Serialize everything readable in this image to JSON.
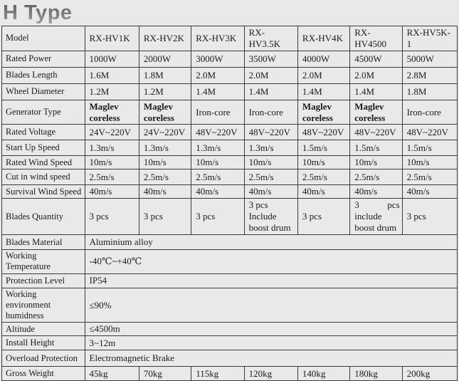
{
  "title": "H Type",
  "table": {
    "rows": [
      {
        "label": "Model",
        "cells": [
          "RX-HV1K",
          "RX-HV2K",
          "RX-HV3K",
          "RX-HV3.5K",
          "RX-HV4K",
          "RX-HV4500",
          "RX-HV5K-1"
        ]
      },
      {
        "label": "Rated Power",
        "cells": [
          "1000W",
          "2000W",
          "3000W",
          "3500W",
          "4000W",
          "4500W",
          "5000W"
        ]
      },
      {
        "label": "Blades Length",
        "cells": [
          "1.6M",
          "1.8M",
          "2.0M",
          "2.0M",
          "2.0M",
          "2.0M",
          "2.8M"
        ]
      },
      {
        "label": "Wheel Diameter",
        "cells": [
          "1.2M",
          "1.2M",
          "1.4M",
          "1.4M",
          "1.4M",
          "1.4M",
          "1.8M"
        ]
      },
      {
        "label": "Generator Type",
        "cells": [
          "Maglev coreless",
          "Maglev coreless",
          "Iron-core",
          "Iron-core",
          "Maglev coreless",
          "Maglev coreless",
          "Iron-core"
        ],
        "bold": [
          true,
          true,
          false,
          false,
          true,
          true,
          false
        ]
      },
      {
        "label": "Rated Voltage",
        "cells": [
          "24V~220V",
          "24V~220V",
          "48V~220V",
          "48V~220V",
          "48V~220V",
          "48V~220V",
          "48V~220V"
        ]
      },
      {
        "label": "Start Up Speed",
        "cells": [
          "1.3m/s",
          "1.3m/s",
          "1.3m/s",
          "1.3m/s",
          "1.5m/s",
          "1.5m/s",
          "1.5m/s"
        ]
      },
      {
        "label": "Rated Wind Speed",
        "cells": [
          "10m/s",
          "10m/s",
          "10m/s",
          "10m/s",
          "10m/s",
          "10m/s",
          "10m/s"
        ]
      },
      {
        "label": "Cut in wind speed",
        "cells": [
          "2.5m/s",
          "2.5m/s",
          "2.5m/s",
          "2.5m/s",
          "2.5m/s",
          "2.5m/s",
          "2.5m/s"
        ]
      },
      {
        "label": "Survival Wind Speed",
        "cells": [
          "40m/s",
          "40m/s",
          "40m/s",
          "40m/s",
          "40m/s",
          "40m/s",
          "40m/s"
        ]
      },
      {
        "label": "Blades Quantity",
        "cells": [
          "3 pcs",
          "3 pcs",
          "3 pcs",
          "3 pcs\nInclude boost drum",
          "3 pcs",
          "3 pcs include boost drum",
          "3 pcs"
        ]
      },
      {
        "label": "Blades Material",
        "span": "Aluminium alloy"
      },
      {
        "label": "Working Temperature",
        "span": "-40℃~+40℃"
      },
      {
        "label": "Protection Level",
        "span": "IP54"
      },
      {
        "label": "Working environment humidness",
        "span": "≤90%"
      },
      {
        "label": "Altitude",
        "span": "≤4500m"
      },
      {
        "label": "Install Height",
        "span": "3~12m"
      },
      {
        "label": "Overload Protection",
        "span": "Electromagnetic Brake"
      },
      {
        "label": "Gross Weight",
        "cells": [
          "45kg",
          "70kg",
          "115kg",
          "120kg",
          "140kg",
          "180kg",
          "200kg"
        ]
      }
    ]
  }
}
